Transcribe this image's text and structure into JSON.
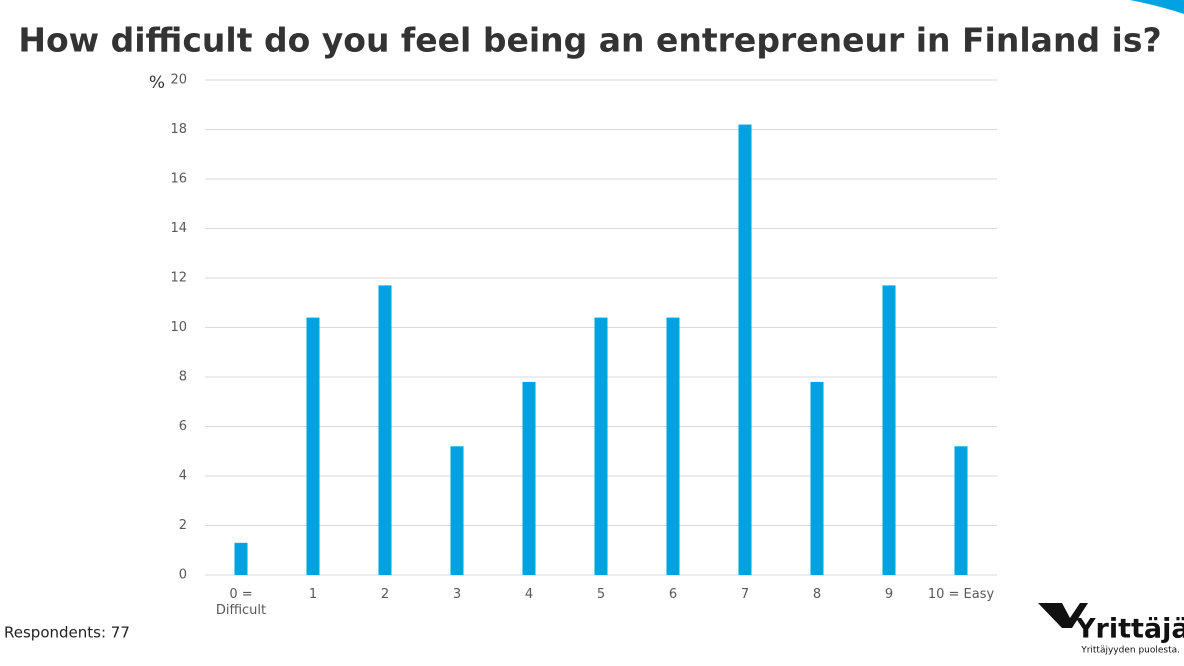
{
  "chart_data": {
    "type": "bar",
    "title": "How difficult do you feel being an entrepreneur in Finland is?",
    "y_label": "%",
    "categories": [
      "0 = Difficult",
      "1",
      "2",
      "3",
      "4",
      "5",
      "6",
      "7",
      "8",
      "9",
      "10 = Easy"
    ],
    "values": [
      1.3,
      10.4,
      11.7,
      5.2,
      7.8,
      10.4,
      10.4,
      18.2,
      7.8,
      11.7,
      5.2
    ],
    "color": "#00a3e0",
    "ylim": [
      0,
      20
    ],
    "yticks": [
      0,
      2,
      4,
      6,
      8,
      10,
      12,
      14,
      16,
      18,
      20
    ],
    "grid": true,
    "note": "Respondents: 77"
  },
  "logo": {
    "name": "Yrittäjät",
    "tagline": "Yrittäjyyden puolesta."
  }
}
